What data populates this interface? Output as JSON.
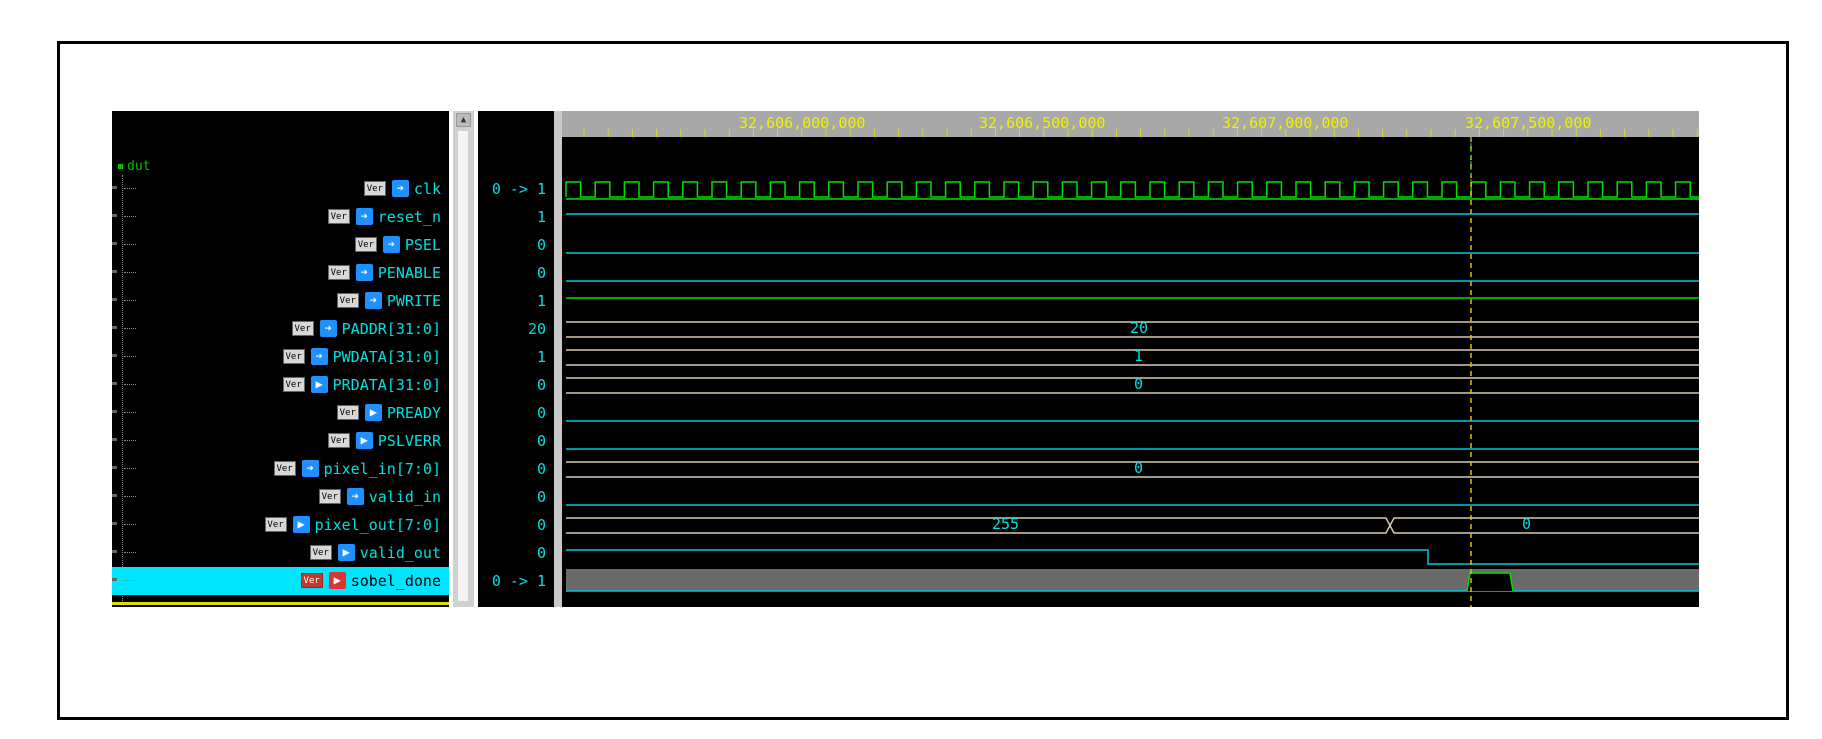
{
  "scope": {
    "label": "dut"
  },
  "ruler": {
    "ticks": [
      "32,606,000,000",
      "32,606,500,000",
      "32,607,000,000",
      "32,607,500,000"
    ]
  },
  "signals": [
    {
      "name": "clk",
      "value": "0 -> 1",
      "dir": "in"
    },
    {
      "name": "reset_n",
      "value": "1",
      "dir": "in"
    },
    {
      "name": "PSEL",
      "value": "0",
      "dir": "in"
    },
    {
      "name": "PENABLE",
      "value": "0",
      "dir": "in"
    },
    {
      "name": "PWRITE",
      "value": "1",
      "dir": "in"
    },
    {
      "name": "PADDR[31:0]",
      "value": "20",
      "dir": "in"
    },
    {
      "name": "PWDATA[31:0]",
      "value": "1",
      "dir": "in"
    },
    {
      "name": "PRDATA[31:0]",
      "value": "0",
      "dir": "out"
    },
    {
      "name": "PREADY",
      "value": "0",
      "dir": "out"
    },
    {
      "name": "PSLVERR",
      "value": "0",
      "dir": "out"
    },
    {
      "name": "pixel_in[7:0]",
      "value": "0",
      "dir": "in"
    },
    {
      "name": "valid_in",
      "value": "0",
      "dir": "in"
    },
    {
      "name": "pixel_out[7:0]",
      "value": "0",
      "dir": "out"
    },
    {
      "name": "valid_out",
      "value": "0",
      "dir": "out"
    },
    {
      "name": "sobel_done",
      "value": "0 -> 1",
      "dir": "out",
      "selected": true
    }
  ],
  "bus_labels": {
    "paddr": "20",
    "pwdata": "1",
    "prdata": "0",
    "pixel_in": "0",
    "pixel_out_before": "255",
    "pixel_out_after": "0"
  },
  "badge": {
    "ver": "Ver"
  },
  "icons": {
    "in": "arrow-right-icon",
    "out": "arrow-out-icon"
  },
  "colors": {
    "clk": "#00e000",
    "logic": "#00c8d8",
    "bus": "#d8c8b0",
    "cursor": "#e0c000",
    "value_text": "#00e0e0",
    "ruler_text": "#f0f000"
  }
}
